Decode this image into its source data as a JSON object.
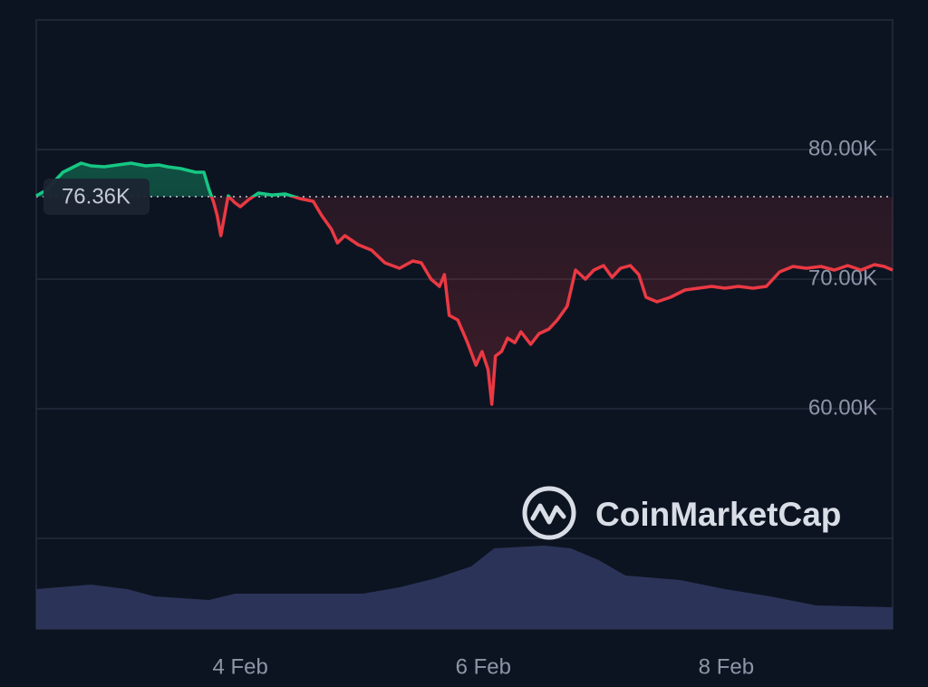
{
  "chart_data": {
    "type": "line",
    "x": [
      2.32,
      2.4,
      2.54,
      2.69,
      2.77,
      2.88,
      2.99,
      3.1,
      3.22,
      3.33,
      3.4,
      3.51,
      3.63,
      3.7,
      3.74,
      3.78,
      3.81,
      3.84,
      3.87,
      3.9,
      3.95,
      4.0,
      4.07,
      4.15,
      4.26,
      4.37,
      4.49,
      4.6,
      4.67,
      4.75,
      4.8,
      4.86,
      4.97,
      5.08,
      5.19,
      5.31,
      5.42,
      5.49,
      5.57,
      5.64,
      5.68,
      5.72,
      5.79,
      5.87,
      5.94,
      5.99,
      6.04,
      6.07,
      6.1,
      6.15,
      6.2,
      6.26,
      6.31,
      6.39,
      6.46,
      6.54,
      6.61,
      6.69,
      6.76,
      6.84,
      6.91,
      6.99,
      7.06,
      7.13,
      7.21,
      7.28,
      7.34,
      7.43,
      7.54,
      7.66,
      7.77,
      7.88,
      7.99,
      8.1,
      8.22,
      8.33,
      8.44,
      8.55,
      8.66,
      8.78,
      8.89,
      9.0,
      9.11,
      9.22,
      9.3,
      9.37
    ],
    "values": [
      76430,
      76850,
      78250,
      78950,
      78740,
      78670,
      78810,
      78950,
      78740,
      78810,
      78670,
      78530,
      78250,
      78250,
      76990,
      75940,
      74900,
      73360,
      74900,
      76430,
      75940,
      75590,
      76150,
      76640,
      76500,
      76570,
      76220,
      76010,
      74900,
      73850,
      72800,
      73360,
      72660,
      72240,
      71260,
      70840,
      71400,
      71260,
      70000,
      69440,
      70350,
      67200,
      66850,
      65100,
      63360,
      64410,
      63010,
      60350,
      64060,
      64410,
      65450,
      65100,
      65940,
      64970,
      65800,
      66150,
      66850,
      67900,
      70700,
      70000,
      70700,
      71050,
      70140,
      70840,
      71050,
      70350,
      68600,
      68250,
      68600,
      69160,
      69300,
      69440,
      69300,
      69440,
      69300,
      69440,
      70560,
      70980,
      70840,
      70980,
      70700,
      71050,
      70700,
      71120,
      70980,
      70700
    ],
    "up_color": "#16c784",
    "down_color": "#ea3943",
    "baseline": {
      "value": 76360,
      "label": "76.36K"
    },
    "xlim": [
      2.32,
      9.37
    ],
    "xticks": [
      {
        "value": 4,
        "label": "4 Feb"
      },
      {
        "value": 6,
        "label": "6 Feb"
      },
      {
        "value": 8,
        "label": "8 Feb"
      }
    ],
    "ylim": [
      50000,
      90000
    ],
    "yticks": [
      {
        "value": 80000,
        "label": "80.00K"
      },
      {
        "value": 70000,
        "label": "70.00K"
      },
      {
        "value": 60000,
        "label": "60.00K"
      }
    ],
    "grid": true,
    "volume": {
      "color": "#2b3458",
      "x": [
        2.32,
        2.77,
        3.07,
        3.29,
        3.74,
        3.96,
        4.49,
        5.01,
        5.31,
        5.61,
        5.9,
        6.09,
        6.5,
        6.72,
        6.95,
        7.17,
        7.62,
        7.99,
        8.36,
        8.74,
        9.37
      ],
      "values": [
        44,
        49,
        44,
        36,
        32,
        39,
        39,
        39,
        46,
        56,
        69,
        89,
        92,
        89,
        76,
        59,
        54,
        44,
        36,
        26,
        24
      ],
      "vlim": [
        0,
        100
      ]
    },
    "watermark": "CoinMarketCap"
  }
}
